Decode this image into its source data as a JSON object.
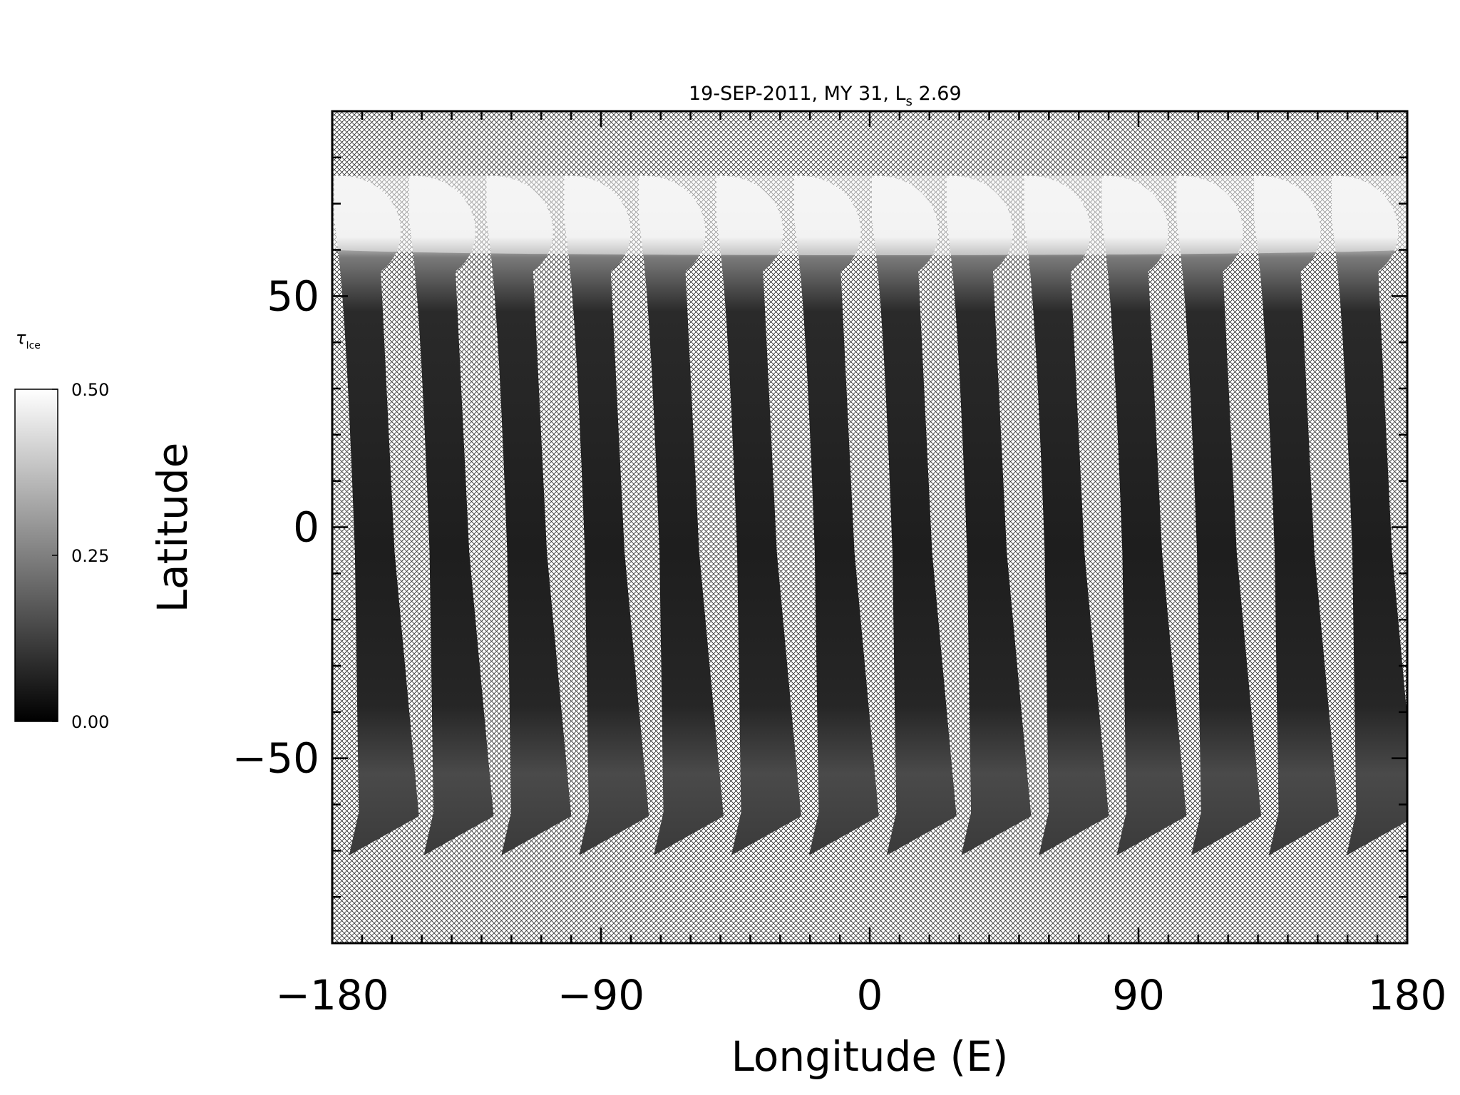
{
  "chart_data": {
    "type": "heatmap",
    "title": "19-SEP-2011, MY 31,  L",
    "title_subscript": "s",
    "title_suffix": " 2.69",
    "xlabel": "Longitude (E)",
    "ylabel": "Latitude",
    "xlim": [
      -180,
      180
    ],
    "ylim": [
      -90,
      90
    ],
    "x_ticks": [
      -180,
      -90,
      0,
      90,
      180
    ],
    "x_tick_labels": [
      "−180",
      "−90",
      "0",
      "90",
      "180"
    ],
    "y_ticks": [
      -50,
      0,
      50
    ],
    "y_tick_labels": [
      "−50",
      "0",
      "50"
    ],
    "x_minor_step": 10,
    "y_minor_step": 10,
    "missing_data_pattern": "crosshatch",
    "colorbar": {
      "label": "τ",
      "label_subscript": "Ice",
      "min": 0.0,
      "max": 0.5,
      "ticks": [
        0.0,
        0.25,
        0.5
      ],
      "tick_labels": [
        "0.00",
        "0.25",
        "0.50"
      ],
      "colormap": "grayscale",
      "low_color": "#000000",
      "high_color": "#ffffff"
    },
    "swaths": {
      "count": 14,
      "lat_top": 76,
      "lat_bottom": -71,
      "lat_polar_hood_edge": 60,
      "top_longitudes": [
        -178,
        -153,
        -127,
        -101,
        -76,
        -50,
        -24,
        2,
        27,
        53,
        79,
        104,
        130,
        156
      ],
      "bottom_longitudes": [
        -162,
        -137,
        -111,
        -85,
        -60,
        -34,
        -8,
        18,
        43,
        69,
        95,
        120,
        146,
        172
      ],
      "width_deg": 13,
      "tau_polar_hood": 0.48,
      "tau_midlatitude": 0.05,
      "tau_south": 0.15
    }
  }
}
